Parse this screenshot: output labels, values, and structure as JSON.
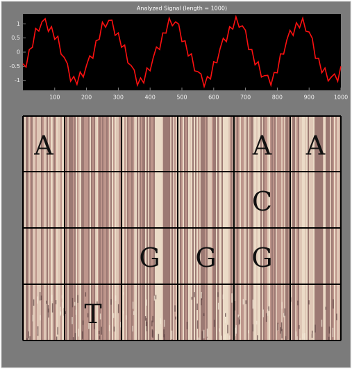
{
  "chart_data": {
    "type": "line",
    "title": "Analyzed Signal (length = 1000)",
    "x": [
      0,
      10,
      20,
      30,
      40,
      50,
      60,
      70,
      80,
      90,
      100,
      110,
      120,
      130,
      140,
      150,
      160,
      170,
      180,
      190,
      200,
      210,
      220,
      230,
      240,
      250,
      260,
      270,
      280,
      290,
      300,
      310,
      320,
      330,
      340,
      350,
      360,
      370,
      380,
      390,
      400,
      410,
      420,
      430,
      440,
      450,
      460,
      470,
      480,
      490,
      500,
      510,
      520,
      530,
      540,
      550,
      560,
      570,
      580,
      590,
      600,
      610,
      620,
      630,
      640,
      650,
      660,
      670,
      680,
      690,
      700,
      710,
      720,
      730,
      740,
      750,
      760,
      770,
      780,
      790,
      800,
      810,
      820,
      830,
      840,
      850,
      860,
      870,
      880,
      890,
      900,
      910,
      920,
      930,
      940,
      950,
      960,
      970,
      980,
      990,
      1000
    ],
    "series": [
      {
        "color": "#ff1010",
        "values": [
          -0.41,
          -0.53,
          0.09,
          0.17,
          0.84,
          0.74,
          1.07,
          1.18,
          0.73,
          0.9,
          0.45,
          0.56,
          -0.07,
          -0.19,
          -0.41,
          -1.03,
          -0.86,
          -1.14,
          -0.7,
          -0.88,
          -0.47,
          -0.13,
          -0.22,
          0.4,
          0.45,
          1.06,
          0.88,
          1.12,
          1.13,
          0.59,
          0.68,
          0.17,
          0.25,
          -0.38,
          -0.47,
          -0.63,
          -1.17,
          -0.91,
          -1.09,
          -0.56,
          -0.66,
          -0.19,
          0.18,
          0.09,
          0.68,
          0.67,
          1.2,
          0.93,
          1.07,
          0.99,
          0.37,
          0.4,
          -0.14,
          -0.06,
          -0.66,
          -0.69,
          -0.77,
          -1.22,
          -0.86,
          -0.95,
          -0.34,
          -0.38,
          0.12,
          0.49,
          0.37,
          0.9,
          0.81,
          1.25,
          0.88,
          0.93,
          0.77,
          0.09,
          0.09,
          -0.45,
          -0.34,
          -0.88,
          -0.83,
          -0.82,
          -1.17,
          -0.72,
          -0.73,
          -0.06,
          -0.07,
          0.43,
          0.77,
          0.59,
          1.04,
          0.86,
          1.2,
          0.74,
          0.71,
          0.49,
          -0.22,
          -0.22,
          -0.73,
          -0.56,
          -1.02,
          -0.88,
          -0.77,
          -1.03,
          -0.5
        ]
      }
    ],
    "xlim": [
      0,
      1000
    ],
    "xticks": [
      100,
      200,
      300,
      400,
      500,
      600,
      700,
      800,
      900,
      1000
    ],
    "ylim": [
      -1.35,
      1.35
    ],
    "yticks": [
      -1,
      -0.5,
      0,
      0.5,
      1
    ],
    "background": "#000000"
  },
  "scalogram": {
    "rows": [
      [
        "A",
        null,
        null,
        null,
        "A",
        "A"
      ],
      [
        null,
        null,
        null,
        null,
        "C",
        null
      ],
      [
        null,
        null,
        "G",
        "G",
        "G",
        null
      ],
      [
        null,
        "T",
        null,
        null,
        null,
        null
      ]
    ]
  }
}
